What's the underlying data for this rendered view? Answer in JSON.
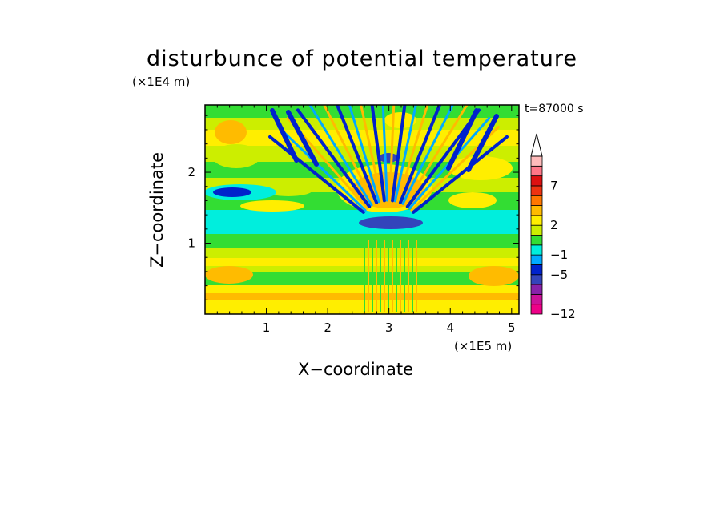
{
  "chart_data": {
    "type": "heatmap",
    "title": "disturbunce of potential temperature",
    "xlabel": "X−coordinate",
    "ylabel": "Z−coordinate",
    "x_unit": "(×1E5 m)",
    "y_unit": "(×1E4 m)",
    "time_label": "t=87000 s",
    "xlim": [
      0,
      5.12
    ],
    "ylim": [
      0,
      2.95
    ],
    "x_ticks": [
      "1",
      "2",
      "3",
      "4",
      "5"
    ],
    "y_ticks": [
      "1",
      "2"
    ],
    "colorbar": {
      "labels": [
        "7",
        "2",
        "−1",
        "−5",
        "−12"
      ],
      "colors": [
        "#ee0088",
        "#cc1199",
        "#8822aa",
        "#3344bb",
        "#0022cc",
        "#00aaff",
        "#00eedd",
        "#33dd33",
        "#ccee00",
        "#ffee00",
        "#ffbb00",
        "#ff7700",
        "#ee3311",
        "#dd1111",
        "#ff7788",
        "#ffbbbb"
      ]
    }
  }
}
